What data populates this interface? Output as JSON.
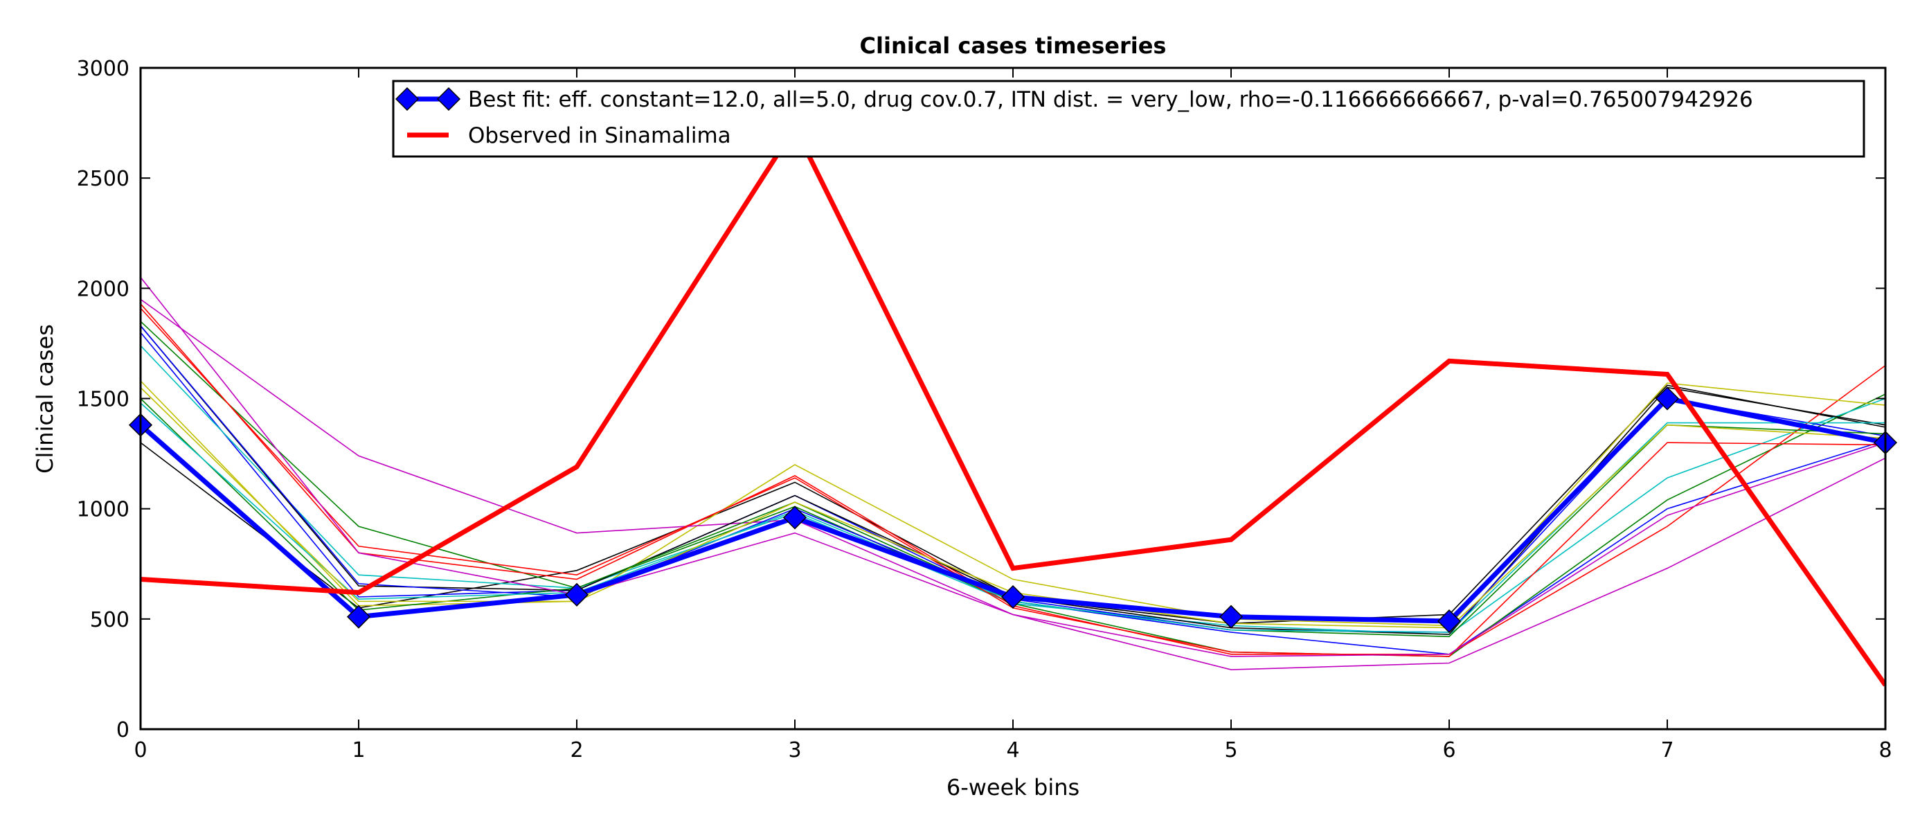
{
  "chart_data": {
    "type": "line",
    "title": "Clinical cases timeseries",
    "xlabel": "6-week bins",
    "ylabel": "Clinical cases",
    "xlim": [
      0,
      8
    ],
    "ylim": [
      0,
      3000
    ],
    "x": [
      0,
      1,
      2,
      3,
      4,
      5,
      6,
      7,
      8
    ],
    "xticks": [
      "0",
      "1",
      "2",
      "3",
      "4",
      "5",
      "6",
      "7",
      "8"
    ],
    "yticks": [
      "0",
      "500",
      "1000",
      "1500",
      "2000",
      "2500",
      "3000"
    ],
    "grid": false,
    "legend_position": "top-right",
    "series": [
      {
        "color": "#000000",
        "values": [
          1300,
          550,
          720,
          1120,
          600,
          480,
          520,
          1560,
          1370
        ]
      },
      {
        "color": "#0000ff",
        "values": [
          1800,
          600,
          630,
          1060,
          580,
          440,
          340,
          1000,
          1310
        ]
      },
      {
        "color": "#008000",
        "values": [
          1850,
          920,
          640,
          1010,
          570,
          350,
          330,
          1040,
          1520
        ]
      },
      {
        "color": "#00bfbf",
        "values": [
          1740,
          700,
          640,
          980,
          570,
          470,
          430,
          1140,
          1500
        ]
      },
      {
        "color": "#ff0000",
        "values": [
          1930,
          800,
          680,
          1150,
          560,
          340,
          340,
          920,
          1650
        ]
      },
      {
        "color": "#bfbf00",
        "values": [
          1580,
          560,
          580,
          1200,
          680,
          500,
          470,
          1570,
          1470
        ]
      },
      {
        "color": "#bf00bf",
        "values": [
          1950,
          1240,
          890,
          950,
          520,
          270,
          300,
          730,
          1230
        ]
      },
      {
        "color": "#000000",
        "values": [
          1830,
          650,
          630,
          1060,
          600,
          460,
          430,
          1550,
          1380
        ]
      },
      {
        "color": "#0000ff",
        "values": [
          1830,
          660,
          600,
          1000,
          590,
          450,
          440,
          1500,
          1330
        ]
      },
      {
        "color": "#008000",
        "values": [
          1500,
          540,
          640,
          1030,
          580,
          450,
          420,
          1380,
          1340
        ]
      },
      {
        "color": "#00bfbf",
        "values": [
          1480,
          590,
          620,
          990,
          580,
          450,
          440,
          1390,
          1390
        ]
      },
      {
        "color": "#ff0000",
        "values": [
          1910,
          830,
          700,
          1140,
          550,
          350,
          330,
          1300,
          1290
        ]
      },
      {
        "color": "#bfbf00",
        "values": [
          1550,
          580,
          580,
          1030,
          620,
          480,
          460,
          1380,
          1320
        ]
      },
      {
        "color": "#bf00bf",
        "values": [
          2050,
          800,
          610,
          890,
          520,
          330,
          340,
          970,
          1300
        ]
      },
      {
        "name": "Best fit: eff. constant=12.0, all=5.0, drug cov.0.7, ITN dist. = very_low, rho=-0.116666666667, p-val=0.765007942926",
        "color": "#0000ff",
        "marker": "diamond",
        "linewidth": 7,
        "legend": true,
        "values": [
          1380,
          510,
          610,
          960,
          600,
          510,
          490,
          1500,
          1300
        ]
      },
      {
        "name": "Observed in Sinamalima",
        "color": "#ff0000",
        "linewidth": 7,
        "legend": true,
        "values": [
          680,
          620,
          1190,
          2730,
          730,
          860,
          1670,
          1610,
          200
        ]
      }
    ]
  }
}
